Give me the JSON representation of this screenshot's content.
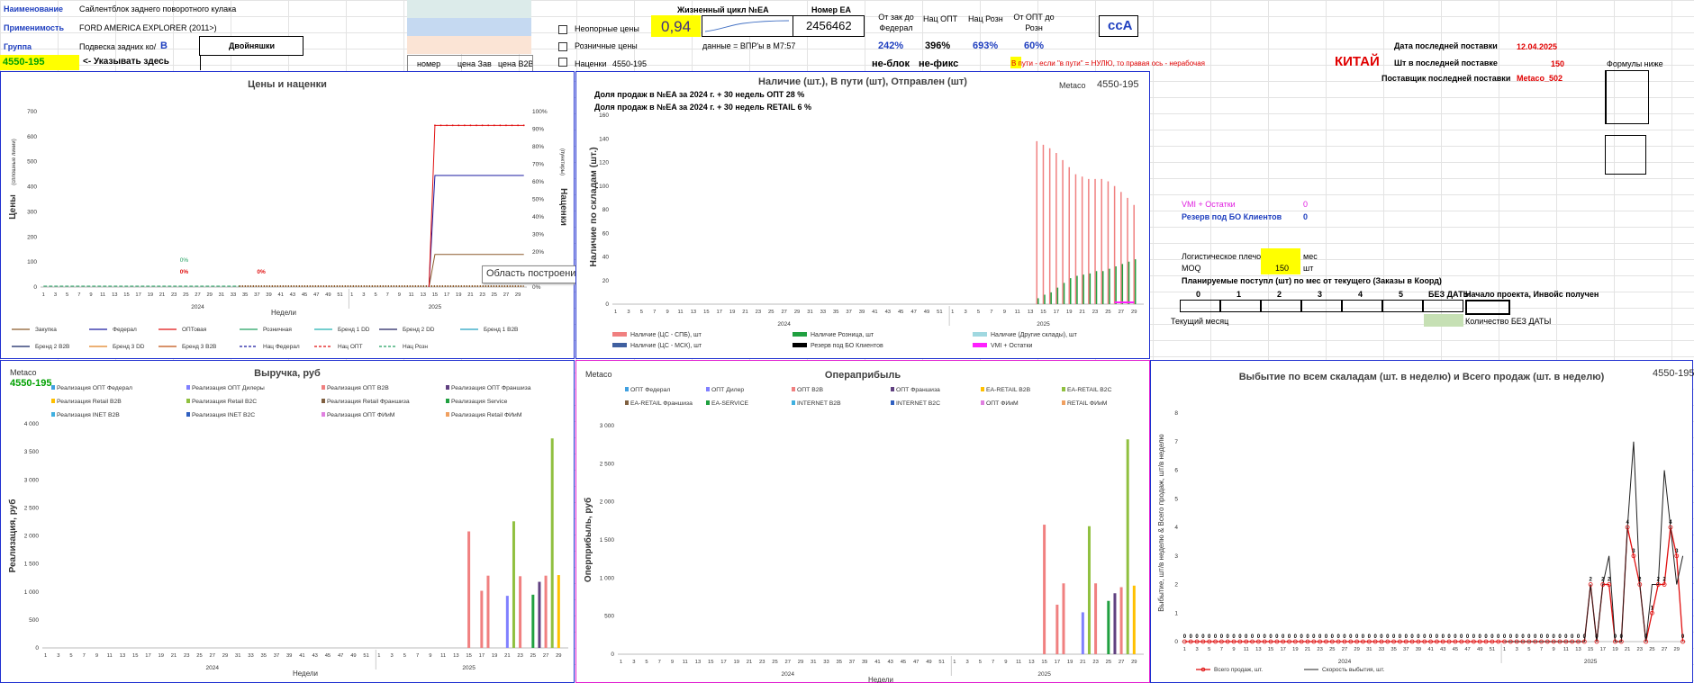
{
  "header": {
    "name_label": "Наименование",
    "name_value": "Сайлентблок заднего поворотного кулака",
    "usage_label": "Применимость",
    "usage_value": "FORD AMERICA EXPLORER (2011>)",
    "group_label": "Группа",
    "group_value": "Подвеска задних ко/",
    "group_letter": "B",
    "twin_label": "Двойняшки",
    "code_value": "4550-195",
    "code_hint": "<- Указывать здесь",
    "lifecycle_label": "Жизненный цикл №EA",
    "lifecycle_value": "0,94",
    "ea_number_label": "Номер ЕА",
    "ea_number_value": "2456462",
    "from_federal_label": "От зак до Федерал",
    "nac_opt_label": "Нац ОПТ",
    "nac_rozn_label": "Нац Розн",
    "from_opt_label": "От ОПТ до Розн",
    "cca_label": "ccA",
    "nonbase_prices_label": "Неопорные цены",
    "retail_prices_label": "Розничные цены",
    "data_note": "данные = ВПР'ы в М7:57",
    "markups_label": "Наценки",
    "markups_code": "4550-195",
    "pct_federal": "242%",
    "pct_opt": "396%",
    "pct_rozn": "693%",
    "pct_from_opt": "60%",
    "nonblock": "не-блок",
    "nonfix": "не-фикс",
    "col_number": "номер",
    "col_price_zav": "цена Зав",
    "col_price_b2b": "цена B2B",
    "transit_note": "В пути - если \"в пути\" = НУЛЮ, то правая ось - нерабочая",
    "china": "КИТАЙ",
    "last_delivery_date_label": "Дата последней поставки",
    "last_delivery_date_value": "12.04.2025",
    "last_delivery_qty_label": "Шт в последней поставке",
    "last_delivery_qty_value": "150",
    "last_supplier_label": "Поставщик последней поставки",
    "last_supplier_value": "Metaco_502",
    "formulas_below": "Формулы ниже",
    "vmi_label": "VMI + Остатки",
    "vmi_value": "0",
    "reserve_label": "Резерв под БО Клиентов",
    "reserve_value": "0",
    "logistics_label": "Логистическое плечо",
    "logistics_unit": "мес",
    "moq_label": "MOQ",
    "moq_value": "150",
    "moq_unit": "шт",
    "planned_title": "Планируемые поступл (шт) по мес от текущего (Заказы в Коорд)",
    "planned_cols": [
      "0",
      "1",
      "2",
      "3",
      "4",
      "5",
      "БЕЗ ДАТЫ"
    ],
    "project_start": "Начало проекта, Инвойс получен",
    "current_month": "Текущий месяц",
    "qty_no_date": "Количество БЕЗ ДАТЫ",
    "tooltip": "Область построения"
  },
  "colors": {
    "panel_border": "#1f2fd0",
    "pink_border": "#e020d0",
    "yellow": "#ffff00",
    "code_green": "#00a000"
  },
  "chart_data": [
    {
      "name": "prices",
      "type": "line",
      "title": "Цены и наценки",
      "ylabel": "Цены",
      "ylabel_small": "(сплошные линии)",
      "y2label": "Наценки",
      "y2label_small": "(пунктиры)",
      "xlabel": "Недели",
      "ylim": [
        0,
        700
      ],
      "y_ticks": [
        "0",
        "100",
        "200",
        "300",
        "400",
        "500",
        "600",
        "700"
      ],
      "y2_ticks": [
        "0%",
        "10%",
        "20%",
        "30%",
        "40%",
        "50%",
        "60%",
        "70%",
        "80%",
        "90%",
        "100%"
      ],
      "years": [
        "2024",
        "2025"
      ],
      "x_ticks_2024": [
        "1",
        "3",
        "5",
        "7",
        "9",
        "11",
        "13",
        "15",
        "17",
        "19",
        "21",
        "23",
        "25",
        "27",
        "29",
        "31",
        "33",
        "35",
        "37",
        "39",
        "41",
        "43",
        "45",
        "47",
        "49",
        "51"
      ],
      "x_ticks_2025": [
        "1",
        "3",
        "5",
        "7",
        "9",
        "11",
        "13",
        "15",
        "17",
        "19",
        "21",
        "23",
        "25",
        "27",
        "29"
      ],
      "labels": [
        "0%",
        "0%",
        "0%"
      ],
      "series": [
        {
          "name": "Закупка",
          "color": "#8b5a2b",
          "value_2025_from_w15": 130
        },
        {
          "name": "Федерал",
          "color": "#1a1aa0",
          "value_2025_from_w15": 445
        },
        {
          "name": "ОПТовая",
          "color": "#e01010",
          "value_2025_from_w15": 645
        },
        {
          "name": "Розничная",
          "color": "#20a060"
        },
        {
          "name": "Бренд 1 DD",
          "color": "#20b0b0"
        },
        {
          "name": "Бренд 2 DD",
          "color": "#202060"
        },
        {
          "name": "Бренд 1 B2B",
          "color": "#20a0c0"
        },
        {
          "name": "Бренд 2 B2B",
          "color": "#102060"
        },
        {
          "name": "Бренд 3 DD",
          "color": "#e08020"
        },
        {
          "name": "Бренд 3 B2B",
          "color": "#c05010"
        },
        {
          "name": "Нац Федерал",
          "color": "#1a1aa0"
        },
        {
          "name": "Нац ОПТ",
          "color": "#e01010"
        },
        {
          "name": "Нац Розн",
          "color": "#20a060"
        }
      ]
    },
    {
      "name": "stock",
      "type": "bar",
      "title": "Наличие (шт.), В пути (шт), Отправлен (шт)",
      "supplier": "Metaco",
      "code": "4550-195",
      "note1": "Доля продаж в №EA за 2024 г. + 30 недель ОПТ 28 %",
      "note2": "Доля продаж в №EA за 2024 г. + 30 недель RETAIL 6 %",
      "ylabel": "Наличие по складам (шт.)",
      "ylim": [
        0,
        160
      ],
      "y_ticks": [
        "0",
        "20",
        "40",
        "60",
        "80",
        "100",
        "120",
        "140",
        "160"
      ],
      "x_ticks_2024": [
        "1",
        "3",
        "5",
        "7",
        "9",
        "11",
        "13",
        "15",
        "17",
        "19",
        "21",
        "23",
        "25",
        "27",
        "29",
        "31",
        "33",
        "35",
        "37",
        "39",
        "41",
        "43",
        "45",
        "47",
        "49",
        "51"
      ],
      "x_ticks_2025": [
        "1",
        "3",
        "5",
        "7",
        "9",
        "11",
        "13",
        "15",
        "17",
        "19",
        "21",
        "23",
        "25",
        "27",
        "29"
      ],
      "years": [
        "2024",
        "2025"
      ],
      "series": [
        {
          "name": "Наличие (ЦС - СПБ), шт",
          "color": "#f08080",
          "weeks_2025": [
            14,
            15,
            16,
            17,
            18,
            19,
            20,
            21,
            22,
            23,
            24,
            25,
            26,
            27,
            28,
            29
          ],
          "values": [
            138,
            135,
            132,
            128,
            122,
            116,
            110,
            108,
            106,
            106,
            106,
            104,
            100,
            95,
            90,
            84
          ]
        },
        {
          "name": "Наличие Розница, шт",
          "color": "#20a040",
          "weeks_2025": [
            14,
            15,
            16,
            17,
            18,
            19,
            20,
            21,
            22,
            23,
            24,
            25,
            26,
            27,
            28,
            29
          ],
          "values": [
            5,
            8,
            10,
            14,
            18,
            22,
            24,
            25,
            26,
            28,
            28,
            30,
            32,
            34,
            36,
            38
          ]
        },
        {
          "name": "Наличие (Другие склады), шт",
          "color": "#a0d8e0"
        },
        {
          "name": "Наличие (ЦС - МСК), шт",
          "color": "#4060a0"
        },
        {
          "name": "Резерв под БО Клиентов",
          "color": "#000000"
        },
        {
          "name": "VMI + Остатки",
          "color": "#ff20ff"
        }
      ]
    },
    {
      "name": "revenue",
      "type": "bar",
      "title": "Выручка, руб",
      "supplier": "Metaco",
      "code": "4550-195",
      "ylabel": "Реализация, руб",
      "xlabel": "Недели",
      "ylim": [
        0,
        4000
      ],
      "y_ticks": [
        "0",
        "500",
        "1 000",
        "1 500",
        "2 000",
        "2 500",
        "3 000",
        "3 500",
        "4 000"
      ],
      "x_ticks_2024": [
        "1",
        "3",
        "5",
        "7",
        "9",
        "11",
        "13",
        "15",
        "17",
        "19",
        "21",
        "23",
        "25",
        "27",
        "29",
        "31",
        "33",
        "35",
        "37",
        "39",
        "41",
        "43",
        "45",
        "47",
        "49",
        "51"
      ],
      "x_ticks_2025": [
        "1",
        "3",
        "5",
        "7",
        "9",
        "11",
        "13",
        "15",
        "17",
        "19",
        "21",
        "23",
        "25",
        "27",
        "29"
      ],
      "years": [
        "2024",
        "2025"
      ],
      "legend": [
        {
          "name": "Реализация ОПТ Федерал",
          "color": "#40a0e0"
        },
        {
          "name": "Реализация ОПТ Дилеры",
          "color": "#8080ff"
        },
        {
          "name": "Реализация ОПТ B2B",
          "color": "#f08080"
        },
        {
          "name": "Реализация ОПТ Франшиза",
          "color": "#604080"
        },
        {
          "name": "Реализация Retail B2B",
          "color": "#ffc000"
        },
        {
          "name": "Реализация Retail B2C",
          "color": "#90c040"
        },
        {
          "name": "Реализация Retail Франшиза",
          "color": "#806040"
        },
        {
          "name": "Реализация Service",
          "color": "#20a040"
        },
        {
          "name": "Реализация INET B2B",
          "color": "#40b0e0"
        },
        {
          "name": "Реализация INET B2C",
          "color": "#3060c0"
        },
        {
          "name": "Реализация ОПТ ФИиМ",
          "color": "#e080e0"
        },
        {
          "name": "Реализация Retail ФИиМ",
          "color": "#f0a060"
        }
      ],
      "bars": [
        {
          "week_2025": 15,
          "value": 2080,
          "color": "#f08080"
        },
        {
          "week_2025": 17,
          "value": 1020,
          "color": "#f08080"
        },
        {
          "week_2025": 18,
          "value": 1290,
          "color": "#f08080"
        },
        {
          "week_2025": 21,
          "value": 930,
          "color": "#8080ff"
        },
        {
          "week_2025": 22,
          "value": 2260,
          "color": "#90c040"
        },
        {
          "week_2025": 23,
          "value": 1280,
          "color": "#f08080"
        },
        {
          "week_2025": 25,
          "value": 950,
          "color": "#20a040"
        },
        {
          "week_2025": 26,
          "value": 1180,
          "color": "#604080"
        },
        {
          "week_2025": 27,
          "value": 1290,
          "color": "#f08080"
        },
        {
          "week_2025": 28,
          "value": 3740,
          "color": "#90c040"
        },
        {
          "week_2025": 29,
          "value": 1300,
          "color": "#ffc000"
        }
      ]
    },
    {
      "name": "profit",
      "type": "bar",
      "title": "Операприбыль",
      "supplier": "Metaco",
      "ylabel": "Оперприбыль, руб",
      "xlabel": "Недели",
      "ylim": [
        0,
        3000
      ],
      "y_ticks": [
        "0",
        "500",
        "1 000",
        "1 500",
        "2 000",
        "2 500",
        "3 000"
      ],
      "x_ticks_2024": [
        "1",
        "3",
        "5",
        "7",
        "9",
        "11",
        "13",
        "15",
        "17",
        "19",
        "21",
        "23",
        "25",
        "27",
        "29",
        "31",
        "33",
        "35",
        "37",
        "39",
        "41",
        "43",
        "45",
        "47",
        "49",
        "51"
      ],
      "x_ticks_2025": [
        "1",
        "3",
        "5",
        "7",
        "9",
        "11",
        "13",
        "15",
        "17",
        "19",
        "21",
        "23",
        "25",
        "27",
        "29"
      ],
      "years": [
        "2024",
        "2025"
      ],
      "legend": [
        {
          "name": "ОПТ Федерал",
          "color": "#40a0e0"
        },
        {
          "name": "ОПТ Дилер",
          "color": "#8080ff"
        },
        {
          "name": "ОПТ B2B",
          "color": "#f08080"
        },
        {
          "name": "ОПТ Франшиза",
          "color": "#604080"
        },
        {
          "name": "EA-RETAIL B2B",
          "color": "#ffc000"
        },
        {
          "name": "EA-RETAIL B2C",
          "color": "#90c040"
        },
        {
          "name": "EA-RETAIL Франшиза",
          "color": "#806040"
        },
        {
          "name": "EA-SERVICE",
          "color": "#20a040"
        },
        {
          "name": "INTERNET B2B",
          "color": "#40b0e0"
        },
        {
          "name": "INTERNET B2C",
          "color": "#3060c0"
        },
        {
          "name": "ОПТ ФИиМ",
          "color": "#e080e0"
        },
        {
          "name": "RETAIL ФИиМ",
          "color": "#f0a060"
        }
      ],
      "bars": [
        {
          "week_2025": 15,
          "value": 1700,
          "color": "#f08080"
        },
        {
          "week_2025": 17,
          "value": 650,
          "color": "#f08080"
        },
        {
          "week_2025": 18,
          "value": 930,
          "color": "#f08080"
        },
        {
          "week_2025": 21,
          "value": 550,
          "color": "#8080ff"
        },
        {
          "week_2025": 22,
          "value": 1680,
          "color": "#90c040"
        },
        {
          "week_2025": 23,
          "value": 930,
          "color": "#f08080"
        },
        {
          "week_2025": 25,
          "value": 700,
          "color": "#20a040"
        },
        {
          "week_2025": 26,
          "value": 800,
          "color": "#604080"
        },
        {
          "week_2025": 27,
          "value": 880,
          "color": "#f08080"
        },
        {
          "week_2025": 28,
          "value": 2820,
          "color": "#90c040"
        },
        {
          "week_2025": 29,
          "value": 900,
          "color": "#ffc000"
        }
      ]
    },
    {
      "name": "outflow",
      "type": "line",
      "title": "Выбытие по всем скаладам (шт. в неделю) и Всего продаж (шт. в неделю)",
      "code": "4550-195",
      "ylabel": "Выбытие, шт/в неделю & Всего продаж, шт/в неделю",
      "ylim": [
        0,
        8
      ],
      "y_ticks": [
        "0",
        "1",
        "2",
        "3",
        "4",
        "5",
        "6",
        "7",
        "8"
      ],
      "x_ticks_2024": [
        "1",
        "3",
        "5",
        "7",
        "9",
        "11",
        "13",
        "15",
        "17",
        "19",
        "21",
        "23",
        "25",
        "27",
        "29",
        "31",
        "33",
        "35",
        "37",
        "39",
        "41",
        "43",
        "45",
        "47",
        "49",
        "51"
      ],
      "x_ticks_2025": [
        "1",
        "3",
        "5",
        "7",
        "9",
        "11",
        "13",
        "15",
        "17",
        "19",
        "21",
        "23",
        "25",
        "27",
        "29"
      ],
      "years": [
        "2024",
        "2025"
      ],
      "series": [
        {
          "name": "Всего продаж, шт.",
          "color": "#e01010",
          "values_2025": [
            0,
            0,
            0,
            0,
            0,
            0,
            0,
            0,
            0,
            0,
            0,
            0,
            0,
            0,
            2,
            0,
            2,
            2,
            0,
            0,
            4,
            3,
            2,
            0,
            1,
            2,
            2,
            4,
            3,
            0
          ]
        },
        {
          "name": "Скорость выбытия, шт.",
          "color": "#202020",
          "values_2025": [
            0,
            0,
            0,
            0,
            0,
            0,
            0,
            0,
            0,
            0,
            0,
            0,
            0,
            0,
            2,
            0,
            2,
            3,
            0,
            0,
            4,
            7,
            2,
            0,
            2,
            2,
            6,
            4,
            2,
            3
          ]
        }
      ]
    }
  ]
}
